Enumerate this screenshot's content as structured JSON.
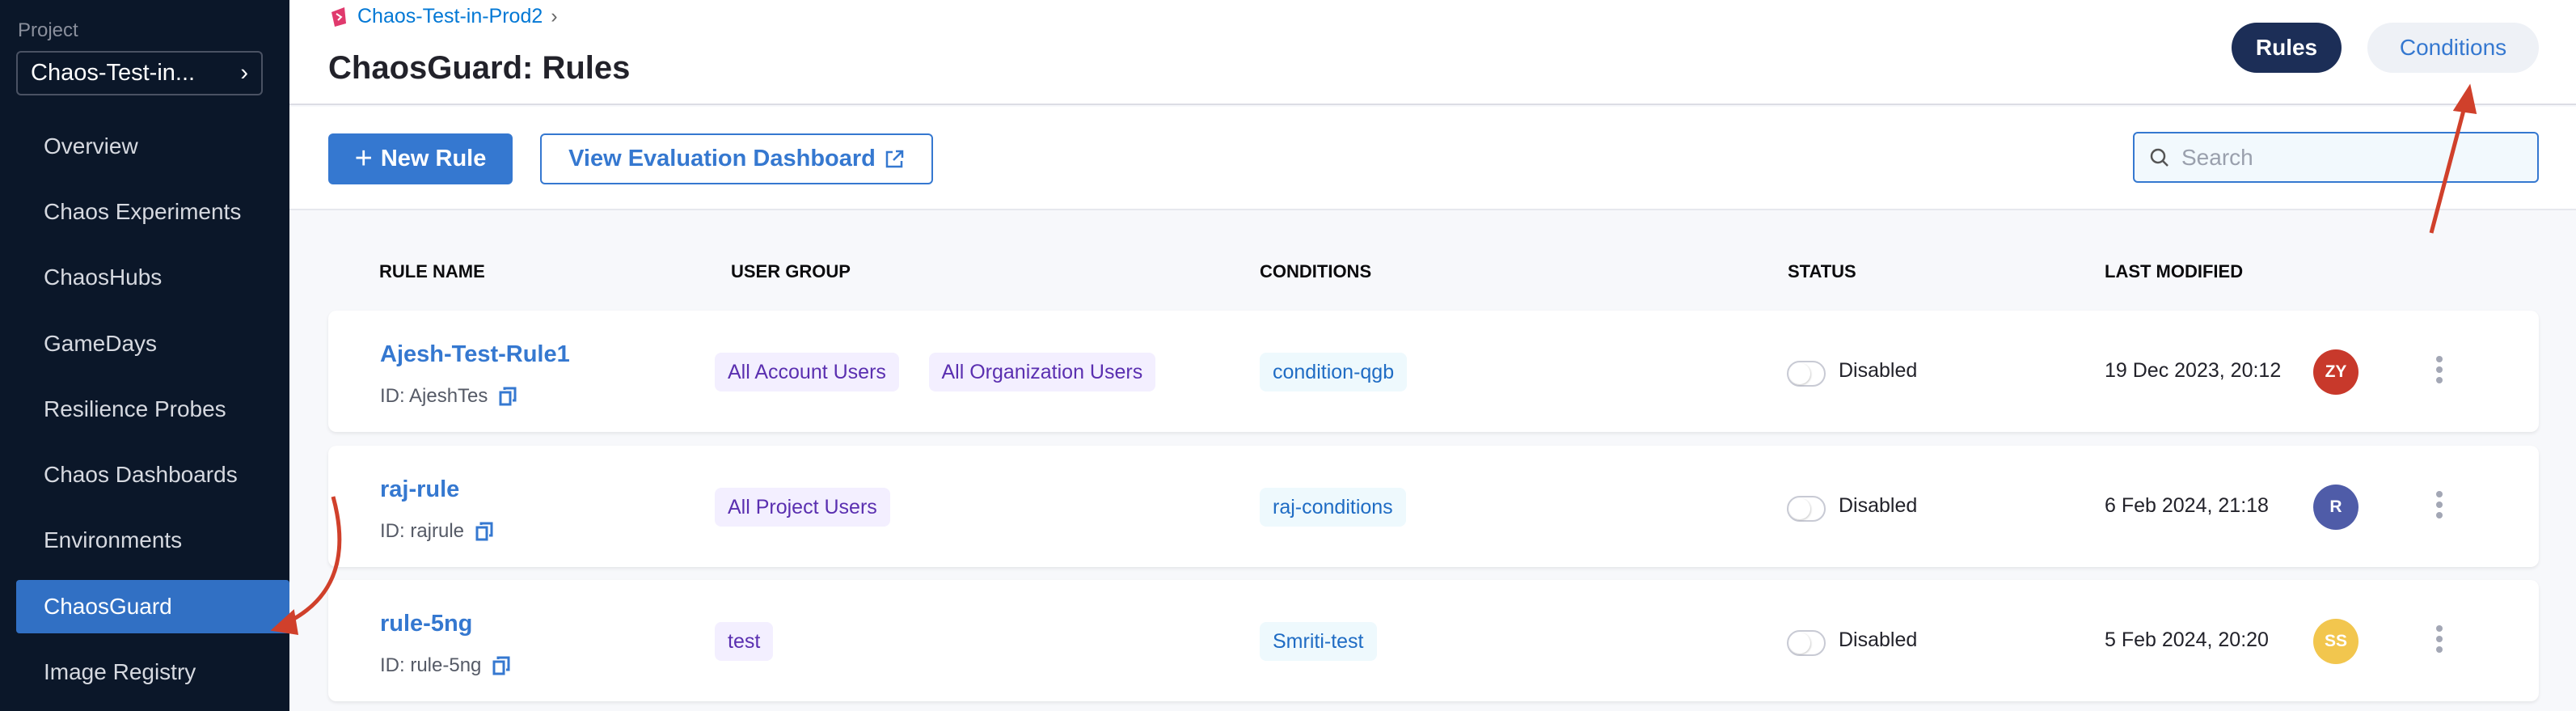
{
  "sidebar": {
    "project_label": "Project",
    "project_name": "Chaos-Test-in...",
    "items": [
      {
        "label": "Overview"
      },
      {
        "label": "Chaos Experiments"
      },
      {
        "label": "ChaosHubs"
      },
      {
        "label": "GameDays"
      },
      {
        "label": "Resilience Probes"
      },
      {
        "label": "Chaos Dashboards"
      },
      {
        "label": "Environments"
      },
      {
        "label": "ChaosGuard",
        "active": true
      },
      {
        "label": "Image Registry"
      }
    ]
  },
  "header": {
    "breadcrumb": "Chaos-Test-in-Prod2",
    "title": "ChaosGuard: Rules",
    "tabs": [
      {
        "label": "Rules",
        "active": true
      },
      {
        "label": "Conditions"
      }
    ]
  },
  "toolbar": {
    "new_rule": "New Rule",
    "view_dashboard": "View Evaluation Dashboard",
    "search_placeholder": "Search"
  },
  "table": {
    "columns": [
      "RULE NAME",
      "USER GROUP",
      "CONDITIONS",
      "STATUS",
      "LAST MODIFIED"
    ],
    "rows": [
      {
        "name": "Ajesh-Test-Rule1",
        "id": "ID: AjeshTes",
        "groups": [
          "All Account Users",
          "All Organization Users"
        ],
        "condition": "condition-qgb",
        "status": "Disabled",
        "modified": "19 Dec 2023, 20:12",
        "avatar": "ZY",
        "avatar_color": "#c8392b"
      },
      {
        "name": "raj-rule",
        "id": "ID: rajrule",
        "groups": [
          "All Project Users"
        ],
        "condition": "raj-conditions",
        "status": "Disabled",
        "modified": "6 Feb 2024, 21:18",
        "avatar": "R",
        "avatar_color": "#4f5ca8"
      },
      {
        "name": "rule-5ng",
        "id": "ID: rule-5ng",
        "groups": [
          "test"
        ],
        "condition": "Smriti-test",
        "status": "Disabled",
        "modified": "5 Feb 2024, 20:20",
        "avatar": "SS",
        "avatar_color": "#f2c64e"
      }
    ]
  },
  "colors": {
    "sidebar_bg": "#0b1729",
    "accent": "#3578d0",
    "annotation_arrow": "#d0402b"
  }
}
